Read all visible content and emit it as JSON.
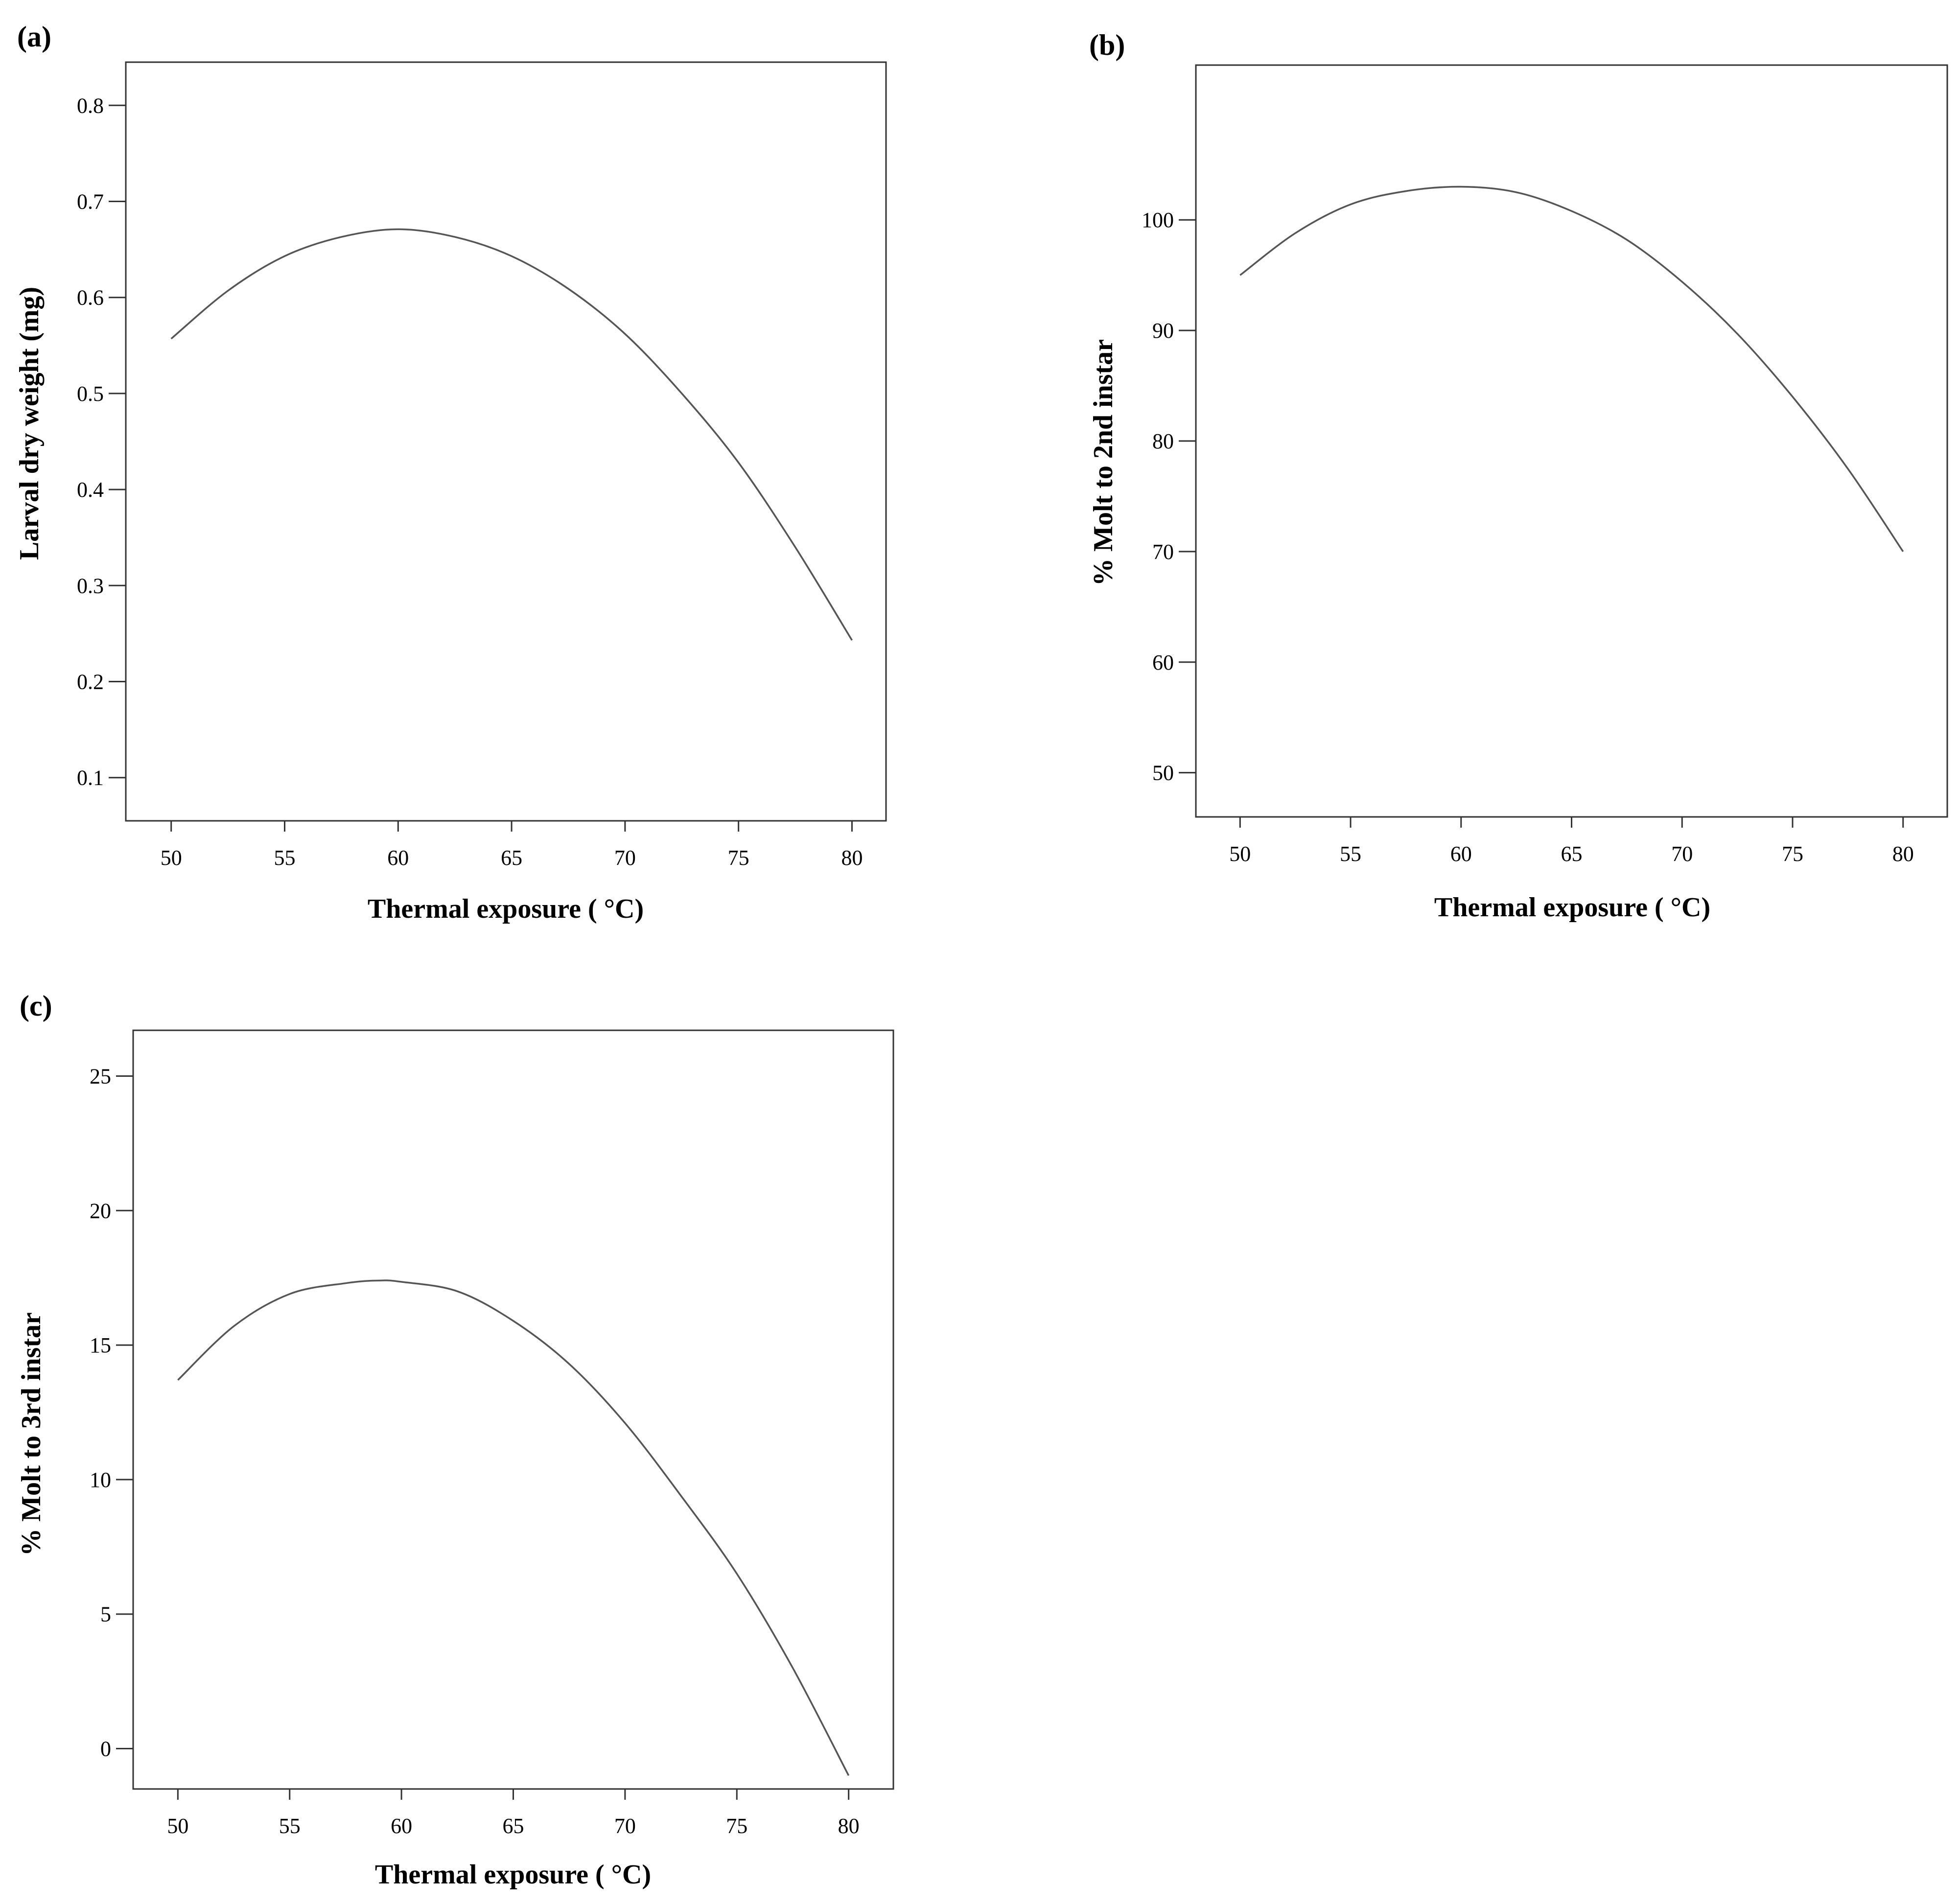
{
  "chart_data": [
    {
      "type": "line",
      "panel": "(a)",
      "xlabel": "Thermal exposure ( °C)",
      "ylabel": "Larval dry weight (mg)",
      "xlim": [
        48,
        81.5
      ],
      "ylim": [
        0.055,
        0.845
      ],
      "xticks": [
        50,
        55,
        60,
        65,
        70,
        75,
        80
      ],
      "yticks": [
        0.1,
        0.2,
        0.3,
        0.4,
        0.5,
        0.6,
        0.7,
        0.8
      ],
      "ytick_labels": [
        "0.1",
        "0.2",
        "0.3",
        "0.4",
        "0.5",
        "0.6",
        "0.7",
        "0.8"
      ],
      "series": [
        {
          "name": "fit",
          "x": [
            50,
            52.5,
            55,
            57.5,
            60,
            62.5,
            65,
            67.5,
            70,
            72.5,
            75,
            77.5,
            80
          ],
          "y": [
            0.557,
            0.607,
            0.643,
            0.663,
            0.671,
            0.663,
            0.643,
            0.609,
            0.562,
            0.5,
            0.428,
            0.34,
            0.243
          ]
        }
      ]
    },
    {
      "type": "line",
      "panel": "(b)",
      "xlabel": "Thermal exposure ( °C)",
      "ylabel": "% Molt to 2nd instar",
      "xlim": [
        48,
        82
      ],
      "ylim": [
        46,
        114
      ],
      "xticks": [
        50,
        55,
        60,
        65,
        70,
        75,
        80
      ],
      "yticks": [
        50,
        60,
        70,
        80,
        90,
        100
      ],
      "ytick_labels": [
        "50",
        "60",
        "70",
        "80",
        "90",
        "100"
      ],
      "series": [
        {
          "name": "fit",
          "x": [
            50,
            52.5,
            55,
            57.5,
            60,
            62.5,
            65,
            67.5,
            70,
            72.5,
            75,
            77.5,
            80
          ],
          "y": [
            95.0,
            98.8,
            101.4,
            102.6,
            103.0,
            102.5,
            100.8,
            98.2,
            94.4,
            89.7,
            84.0,
            77.5,
            70.0
          ]
        }
      ]
    },
    {
      "type": "line",
      "panel": "(c)",
      "xlabel": "Thermal exposure ( °C)",
      "ylabel": "% Molt to 3rd instar",
      "xlim": [
        48,
        82
      ],
      "ylim": [
        -1.5,
        26.7
      ],
      "xticks": [
        50,
        55,
        60,
        65,
        70,
        75,
        80
      ],
      "yticks": [
        0,
        5,
        10,
        15,
        20,
        25
      ],
      "ytick_labels": [
        "0",
        "5",
        "10",
        "15",
        "20",
        "25"
      ],
      "series": [
        {
          "name": "fit",
          "x": [
            50,
            52.5,
            55,
            57.5,
            59,
            60,
            62.5,
            65,
            67.5,
            70,
            72.5,
            75,
            77.5,
            80
          ],
          "y": [
            13.7,
            15.7,
            16.9,
            17.3,
            17.4,
            17.35,
            17.0,
            15.9,
            14.3,
            12.1,
            9.4,
            6.5,
            3.0,
            -1.0
          ]
        }
      ]
    }
  ]
}
